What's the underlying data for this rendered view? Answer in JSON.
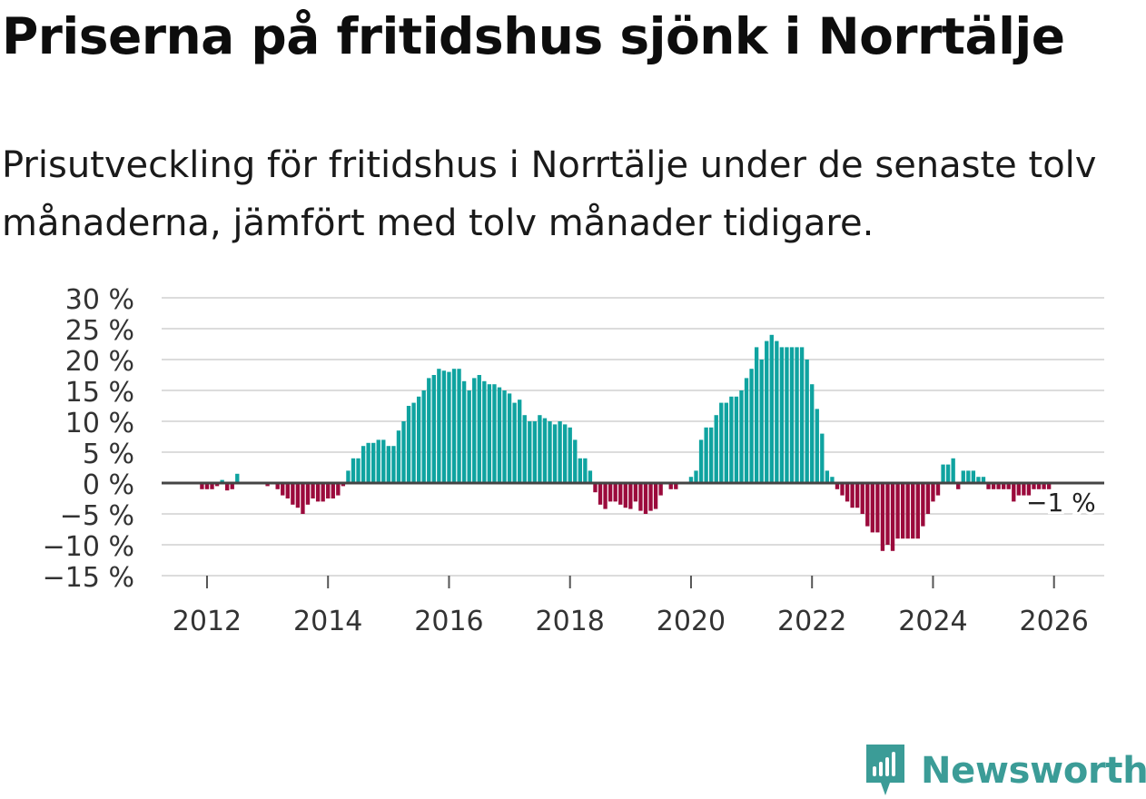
{
  "header": {
    "title": "Priserna på fritidshus sjönk i Norrtälje",
    "subtitle": "Prisutveckling för fritidshus i Norrtälje under de senaste tolv månaderna, jämfört med tolv månader tidigare."
  },
  "brand": {
    "name": "Newsworthy",
    "icon": "newsworthy-logo-icon",
    "color": "#3b9c97"
  },
  "colors": {
    "positive": "#0fa3a0",
    "negative": "#9b0a3c",
    "grid": "#dcdcdc",
    "zero_line": "#444444",
    "text": "#333333"
  },
  "chart_data": {
    "type": "bar",
    "title": "Priserna på fritidshus sjönk i Norrtälje",
    "xlabel": "",
    "ylabel": "",
    "unit": "%",
    "ylim": [
      -15,
      30
    ],
    "yticks": [
      30,
      25,
      20,
      15,
      10,
      5,
      0,
      -5,
      -10,
      -15
    ],
    "ytick_labels": [
      "30 %",
      "25 %",
      "20 %",
      "15 %",
      "10 %",
      "5 %",
      "0 %",
      "−5 %",
      "−10 %",
      "−15 %"
    ],
    "xlim": [
      2011.25,
      2026.83
    ],
    "xticks": [
      2012,
      2014,
      2016,
      2018,
      2020,
      2022,
      2024,
      2026
    ],
    "xtick_labels": [
      "2012",
      "2014",
      "2016",
      "2018",
      "2020",
      "2022",
      "2024",
      "2026"
    ],
    "grid": true,
    "annotation": {
      "label": "−1 %",
      "x": 2026.0,
      "y": -1
    },
    "start": {
      "year": 2011,
      "month": 12
    },
    "step": "month",
    "values": [
      -1,
      -1,
      -1,
      -0.5,
      0.5,
      -1.2,
      -1,
      1.5,
      0,
      0,
      0,
      0,
      0,
      -0.5,
      0,
      -1,
      -2,
      -2.5,
      -3.5,
      -4,
      -5,
      -3.5,
      -2.5,
      -3,
      -3,
      -2.5,
      -2.5,
      -2,
      -0.5,
      2,
      4,
      4,
      6,
      6.5,
      6.5,
      7,
      7,
      6,
      6,
      8.5,
      10,
      12.5,
      13,
      14,
      15,
      17,
      17.5,
      18.5,
      18.2,
      18,
      18.5,
      18.5,
      16.5,
      15,
      17,
      17.5,
      16.5,
      16,
      16,
      15.5,
      15,
      14.5,
      13,
      13.5,
      11,
      10,
      10,
      11,
      10.5,
      10,
      9.5,
      10,
      9.5,
      9,
      7,
      4,
      4,
      2,
      -1.5,
      -3.5,
      -4.2,
      -3,
      -3,
      -3.5,
      -4,
      -4.2,
      -3,
      -4.5,
      -5,
      -4.5,
      -4.2,
      -2,
      0,
      -1,
      -1,
      0,
      0,
      1,
      2,
      7,
      9,
      9,
      11,
      13,
      13,
      14,
      14,
      15,
      17,
      18.5,
      22,
      20,
      23,
      24,
      23,
      22,
      22,
      22,
      22,
      22,
      20,
      16,
      12,
      8,
      2,
      1,
      -1,
      -2,
      -3,
      -4,
      -4,
      -5,
      -7,
      -8,
      -8,
      -11,
      -10,
      -11,
      -9,
      -9,
      -9,
      -9,
      -9,
      -7,
      -5,
      -3,
      -2,
      3,
      3,
      4,
      -1,
      2,
      2,
      2,
      1,
      1,
      -1,
      -1,
      -1,
      -1,
      -1,
      -3,
      -2,
      -2,
      -2,
      -1,
      -1,
      -1,
      -1
    ]
  }
}
